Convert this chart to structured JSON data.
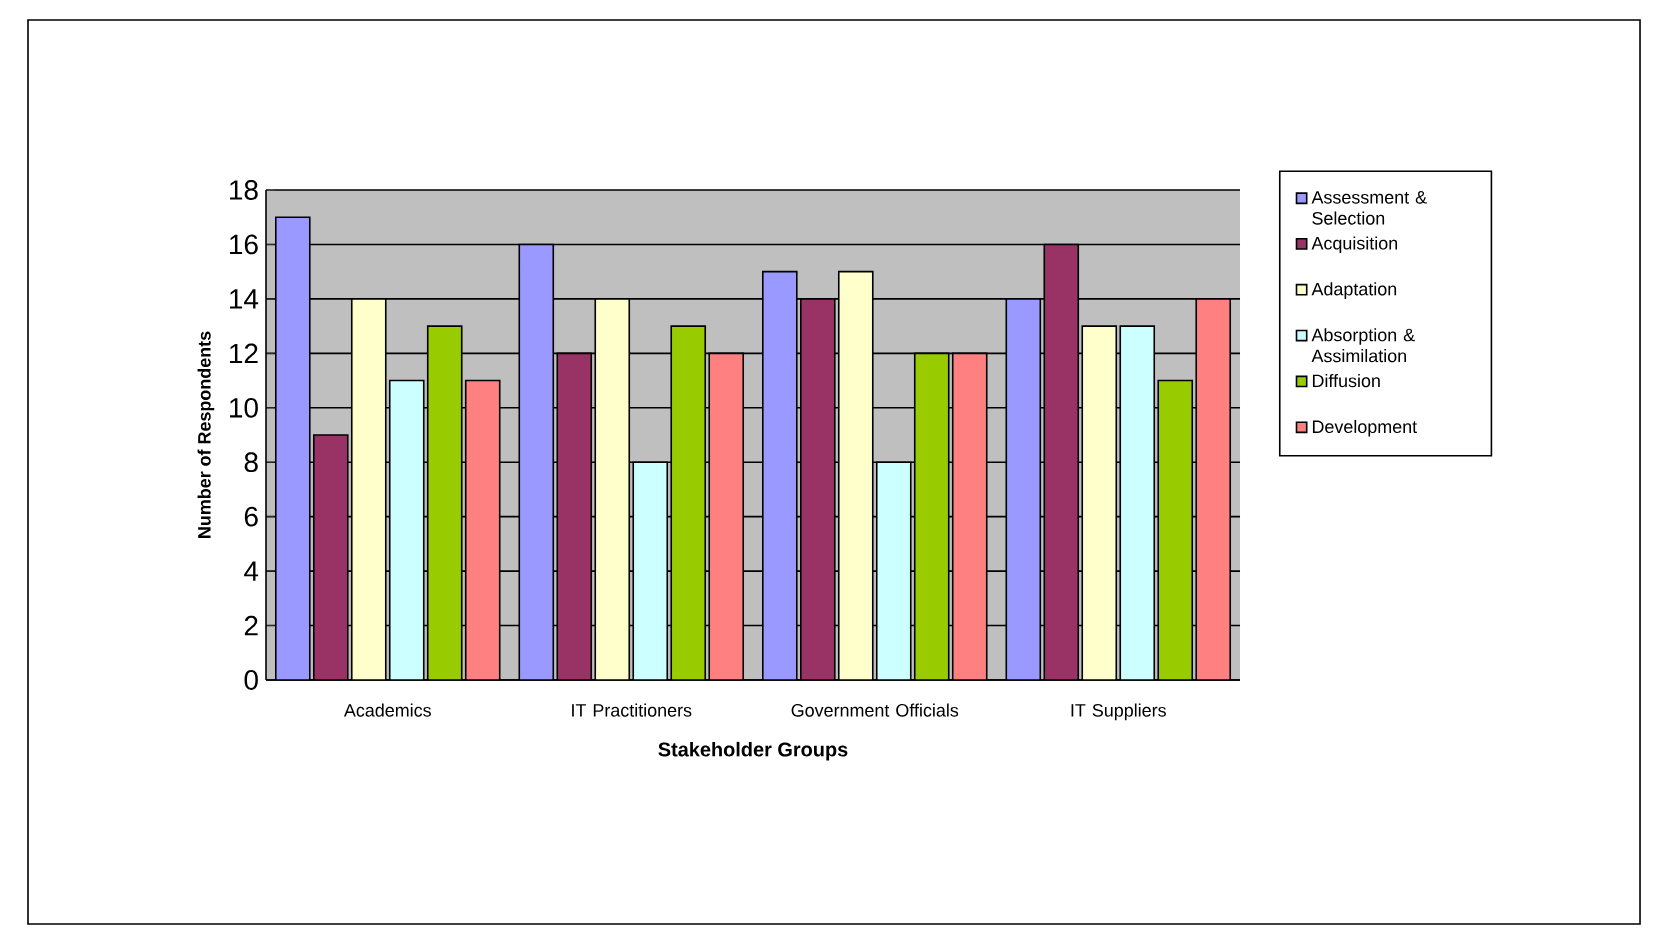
{
  "chart_data": {
    "type": "bar",
    "xlabel": "Stakeholder Groups",
    "ylabel": "Number of Respondents",
    "categories": [
      "Academics",
      "IT Practitioners",
      "Government Officials",
      "IT Suppliers"
    ],
    "series": [
      {
        "name": "Assessment & Selection",
        "color": "#9999ff",
        "values": [
          17,
          16,
          15,
          14
        ]
      },
      {
        "name": "Acquisition",
        "color": "#993366",
        "values": [
          9,
          12,
          14,
          16
        ]
      },
      {
        "name": "Adaptation",
        "color": "#ffffcc",
        "values": [
          14,
          14,
          15,
          13
        ]
      },
      {
        "name": "Absorption & Assimilation",
        "color": "#ccffff",
        "values": [
          11,
          8,
          8,
          13
        ]
      },
      {
        "name": "Diffusion",
        "color": "#99cc00",
        "values": [
          13,
          13,
          12,
          11
        ]
      },
      {
        "name": "Development",
        "color": "#ff8080",
        "values": [
          11,
          12,
          12,
          14
        ]
      }
    ],
    "ylim": [
      0,
      18
    ],
    "yticks": [
      0,
      2,
      4,
      6,
      8,
      10,
      12,
      14,
      16,
      18
    ],
    "grid": "y",
    "legend": "right"
  }
}
